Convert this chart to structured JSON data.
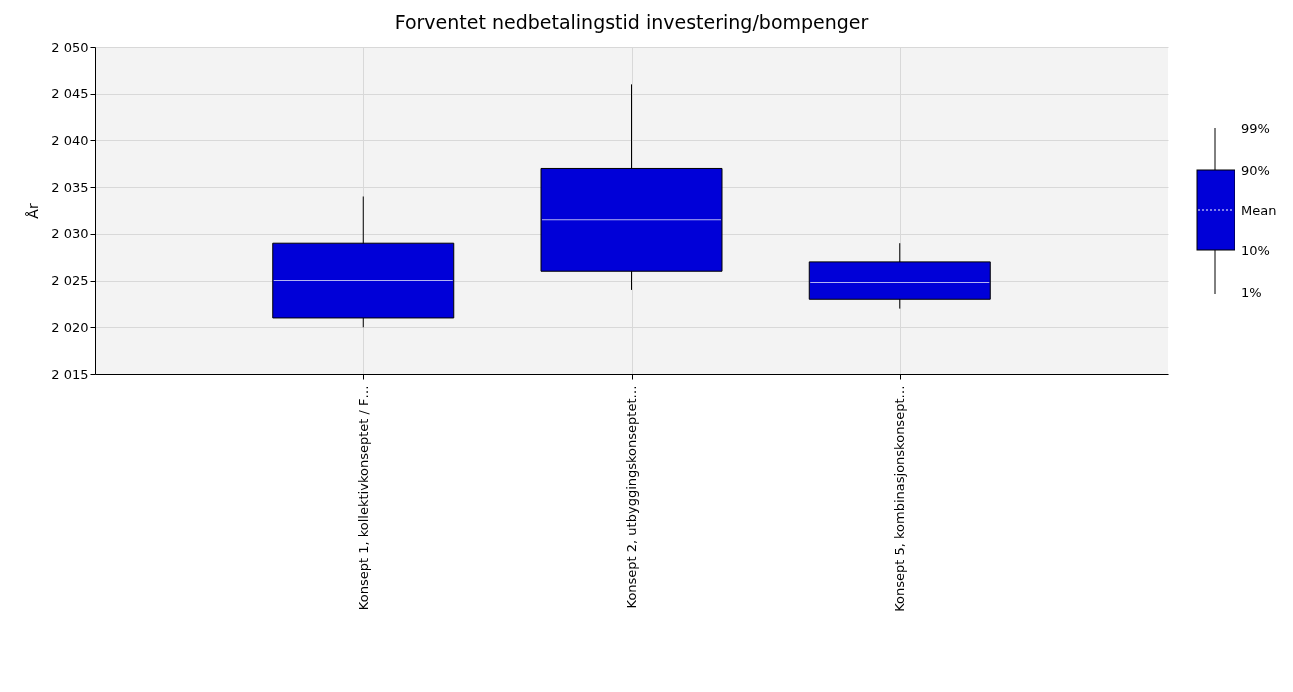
{
  "chart_data": {
    "type": "box",
    "title": "Forventet nedbetalingstid investering/bompenger",
    "ylabel": "År",
    "categories": [
      "Konsept 1, kollektivkonseptet / F…",
      "Konsept 2, utbyggingskonseptet…",
      "Konsept 5, kombinasjonskonsept…"
    ],
    "boxes": [
      {
        "low": 2020,
        "q1": 2021,
        "q3": 2029,
        "high": 2034,
        "mean": 2025
      },
      {
        "low": 2024,
        "q1": 2026,
        "q3": 2037,
        "high": 2046,
        "mean": 2031.5
      },
      {
        "low": 2022,
        "q1": 2023,
        "q3": 2027,
        "high": 2029,
        "mean": 2024.8
      }
    ],
    "color": "#0000d8",
    "ylim": [
      2015,
      2050
    ],
    "yticks": [
      {
        "value": 2015,
        "label": "2 015"
      },
      {
        "value": 2020,
        "label": "2 020"
      },
      {
        "value": 2025,
        "label": "2 025"
      },
      {
        "value": 2030,
        "label": "2 030"
      },
      {
        "value": 2035,
        "label": "2 035"
      },
      {
        "value": 2040,
        "label": "2 040"
      },
      {
        "value": 2045,
        "label": "2 045"
      },
      {
        "value": 2050,
        "label": "2 050"
      }
    ],
    "grid": true,
    "annotations": [
      "99%",
      "90%",
      "Mean",
      "10%",
      "1%"
    ]
  }
}
